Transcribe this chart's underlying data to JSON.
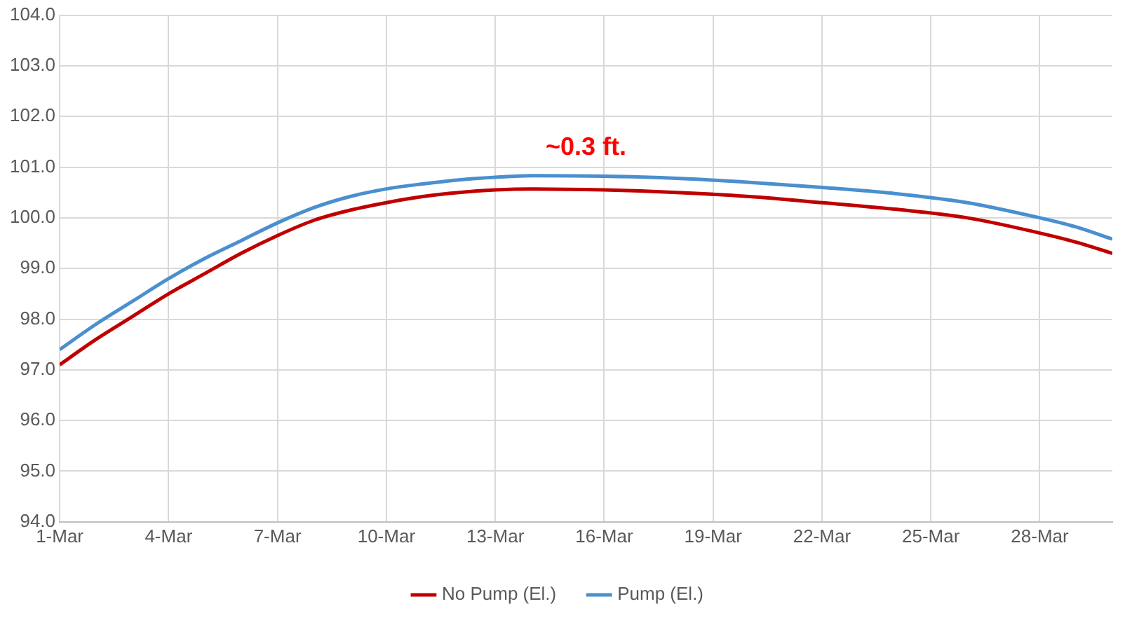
{
  "chart_data": {
    "type": "line",
    "x": [
      "--03-01",
      "--03-02",
      "--03-03",
      "--03-04",
      "--03-05",
      "--03-06",
      "--03-07",
      "--03-08",
      "--03-09",
      "--03-10",
      "--03-11",
      "--03-12",
      "--03-13",
      "--03-14",
      "--03-16",
      "--03-18",
      "--03-20",
      "--03-22",
      "--03-24",
      "--03-26",
      "--03-28",
      "--03-29",
      "--03-30"
    ],
    "series": [
      {
        "name": "No Pump (El.)",
        "color": "#c00000",
        "values": [
          97.1,
          97.6,
          98.05,
          98.5,
          98.9,
          99.3,
          99.65,
          99.95,
          100.15,
          100.3,
          100.42,
          100.5,
          100.55,
          100.57,
          100.55,
          100.5,
          100.42,
          100.3,
          100.17,
          100.0,
          99.7,
          99.52,
          99.3
        ]
      },
      {
        "name": "Pump (El.)",
        "color": "#4a8fcf",
        "values": [
          97.4,
          97.9,
          98.35,
          98.8,
          99.2,
          99.55,
          99.9,
          100.2,
          100.42,
          100.57,
          100.67,
          100.75,
          100.8,
          100.83,
          100.82,
          100.78,
          100.7,
          100.6,
          100.48,
          100.3,
          100.0,
          99.82,
          99.58
        ]
      }
    ],
    "xlim": [
      "--03-01",
      "--03-30"
    ],
    "xticks": [
      {
        "value": "--03-01",
        "label": "1-Mar"
      },
      {
        "value": "--03-04",
        "label": "4-Mar"
      },
      {
        "value": "--03-07",
        "label": "7-Mar"
      },
      {
        "value": "--03-10",
        "label": "10-Mar"
      },
      {
        "value": "--03-13",
        "label": "13-Mar"
      },
      {
        "value": "--03-16",
        "label": "16-Mar"
      },
      {
        "value": "--03-19",
        "label": "19-Mar"
      },
      {
        "value": "--03-22",
        "label": "22-Mar"
      },
      {
        "value": "--03-25",
        "label": "25-Mar"
      },
      {
        "value": "--03-28",
        "label": "28-Mar"
      }
    ],
    "ylim": [
      94,
      104
    ],
    "yticks": [
      {
        "value": 94,
        "label": "94.0"
      },
      {
        "value": 95,
        "label": "95.0"
      },
      {
        "value": 96,
        "label": "96.0"
      },
      {
        "value": 97,
        "label": "97.0"
      },
      {
        "value": 98,
        "label": "98.0"
      },
      {
        "value": 99,
        "label": "99.0"
      },
      {
        "value": 100,
        "label": "100.0"
      },
      {
        "value": 101,
        "label": "101.0"
      },
      {
        "value": 102,
        "label": "102.0"
      },
      {
        "value": 103,
        "label": "103.0"
      },
      {
        "value": 104,
        "label": "104.0"
      }
    ],
    "annotations": [
      "~0.3 ft."
    ],
    "grid": true,
    "legend": "bottom",
    "marker": "none",
    "line_style": "solid"
  }
}
